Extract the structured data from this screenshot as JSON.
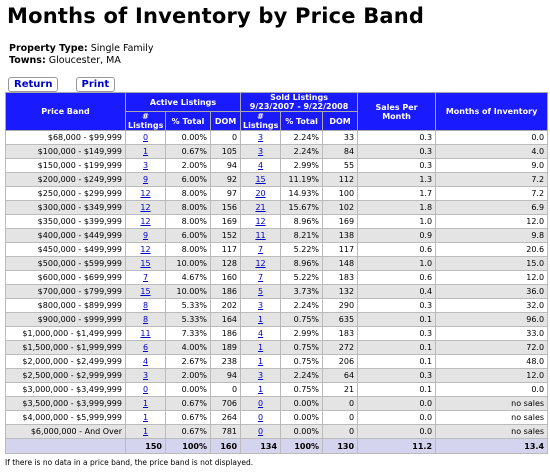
{
  "header": {
    "title": "Months of Inventory by Price Band",
    "property_type_label": "Property Type:",
    "property_type": "Single Family",
    "towns_label": "Towns:",
    "towns": "Gloucester, MA"
  },
  "buttons": [
    "Return",
    "Print"
  ],
  "table": {
    "headers": {
      "price_band": "Price Band",
      "active": "Active Listings",
      "sold": "Sold Listings",
      "sold_period": "9/23/2007 - 9/22/2008",
      "sales_per_month": "Sales Per Month",
      "months_of_inventory": "Months of Inventory",
      "sub": [
        "# Listings",
        "% Total",
        "DOM",
        "# Listings",
        "% Total",
        "DOM"
      ]
    },
    "rows": [
      [
        "$68,000 - $99,999",
        "0",
        "0.00%",
        "0",
        "3",
        "2.24%",
        "33",
        "0.3",
        "0.0"
      ],
      [
        "$100,000 - $149,999",
        "1",
        "0.67%",
        "105",
        "3",
        "2.24%",
        "84",
        "0.3",
        "4.0"
      ],
      [
        "$150,000 - $199,999",
        "3",
        "2.00%",
        "94",
        "4",
        "2.99%",
        "55",
        "0.3",
        "9.0"
      ],
      [
        "$200,000 - $249,999",
        "9",
        "6.00%",
        "92",
        "15",
        "11.19%",
        "112",
        "1.3",
        "7.2"
      ],
      [
        "$250,000 - $299,999",
        "12",
        "8.00%",
        "97",
        "20",
        "14.93%",
        "100",
        "1.7",
        "7.2"
      ],
      [
        "$300,000 - $349,999",
        "12",
        "8.00%",
        "156",
        "21",
        "15.67%",
        "102",
        "1.8",
        "6.9"
      ],
      [
        "$350,000 - $399,999",
        "12",
        "8.00%",
        "169",
        "12",
        "8.96%",
        "169",
        "1.0",
        "12.0"
      ],
      [
        "$400,000 - $449,999",
        "9",
        "6.00%",
        "152",
        "11",
        "8.21%",
        "138",
        "0.9",
        "9.8"
      ],
      [
        "$450,000 - $499,999",
        "12",
        "8.00%",
        "117",
        "7",
        "5.22%",
        "117",
        "0.6",
        "20.6"
      ],
      [
        "$500,000 - $599,999",
        "15",
        "10.00%",
        "128",
        "12",
        "8.96%",
        "148",
        "1.0",
        "15.0"
      ],
      [
        "$600,000 - $699,999",
        "7",
        "4.67%",
        "160",
        "7",
        "5.22%",
        "183",
        "0.6",
        "12.0"
      ],
      [
        "$700,000 - $799,999",
        "15",
        "10.00%",
        "186",
        "5",
        "3.73%",
        "132",
        "0.4",
        "36.0"
      ],
      [
        "$800,000 - $899,999",
        "8",
        "5.33%",
        "202",
        "3",
        "2.24%",
        "290",
        "0.3",
        "32.0"
      ],
      [
        "$900,000 - $999,999",
        "8",
        "5.33%",
        "164",
        "1",
        "0.75%",
        "635",
        "0.1",
        "96.0"
      ],
      [
        "$1,000,000 - $1,499,999",
        "11",
        "7.33%",
        "186",
        "4",
        "2.99%",
        "183",
        "0.3",
        "33.0"
      ],
      [
        "$1,500,000 - $1,999,999",
        "6",
        "4.00%",
        "189",
        "1",
        "0.75%",
        "272",
        "0.1",
        "72.0"
      ],
      [
        "$2,000,000 - $2,499,999",
        "4",
        "2.67%",
        "238",
        "1",
        "0.75%",
        "206",
        "0.1",
        "48.0"
      ],
      [
        "$2,500,000 - $2,999,999",
        "3",
        "2.00%",
        "94",
        "3",
        "2.24%",
        "64",
        "0.3",
        "12.0"
      ],
      [
        "$3,000,000 - $3,499,999",
        "0",
        "0.00%",
        "0",
        "1",
        "0.75%",
        "21",
        "0.1",
        "0.0"
      ],
      [
        "$3,500,000 - $3,999,999",
        "1",
        "0.67%",
        "706",
        "0",
        "0.00%",
        "0",
        "0.0",
        "no sales"
      ],
      [
        "$4,000,000 - $5,999,999",
        "1",
        "0.67%",
        "264",
        "0",
        "0.00%",
        "0",
        "0.0",
        "no sales"
      ],
      [
        "$6,000,000 - And Over",
        "1",
        "0.67%",
        "781",
        "0",
        "0.00%",
        "0",
        "0.0",
        "no sales"
      ]
    ],
    "total": [
      "150",
      "100%",
      "160",
      "134",
      "100%",
      "130",
      "11.2",
      "13.4"
    ]
  },
  "footnote": "If there is no data in a price band, the price band is not displayed."
}
